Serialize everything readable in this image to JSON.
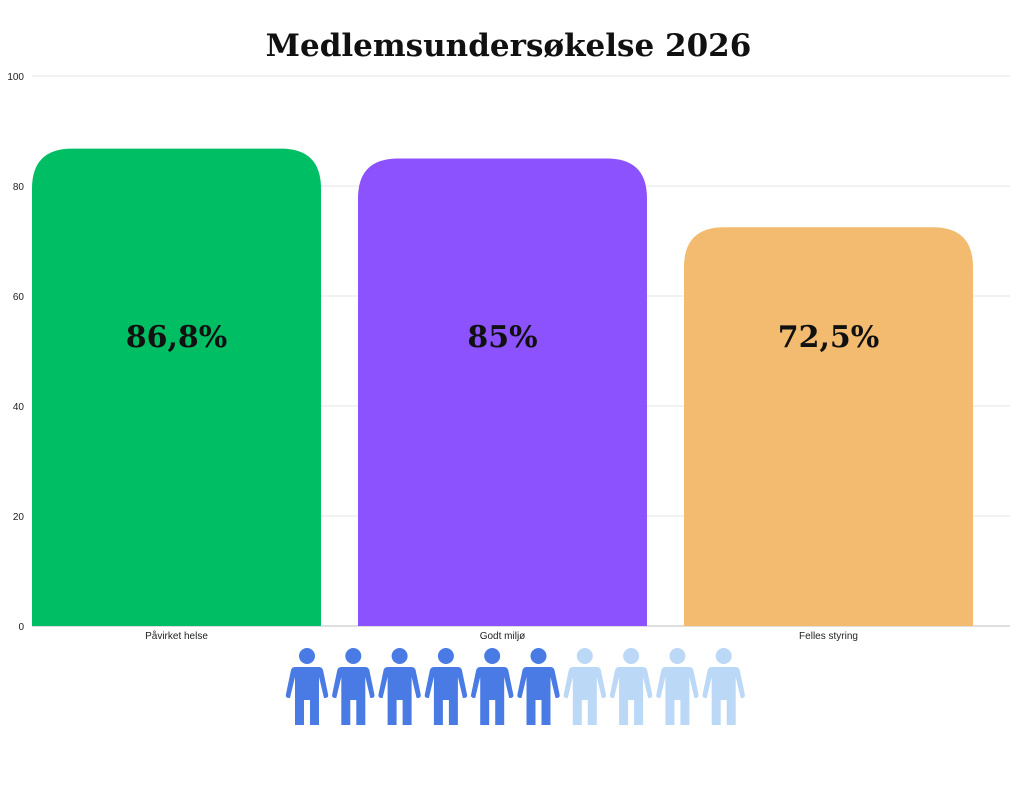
{
  "chart_data": {
    "type": "bar",
    "title": "Medlemsundersøkelse 2026",
    "xlabel": "",
    "ylabel": "",
    "categories": [
      "Påvirket helse",
      "Godt miljø",
      "Felles styring"
    ],
    "values": [
      86.8,
      85,
      72.5
    ],
    "value_labels": [
      "86,8%",
      "85%",
      "72,5%"
    ],
    "colors": [
      "#00be63",
      "#8b52fe",
      "#f2bb70"
    ],
    "ylim": [
      0,
      100
    ],
    "yticks": [
      0,
      20,
      40,
      60,
      80,
      100
    ],
    "grid": true,
    "legend": "none"
  },
  "pictogram": {
    "total": 10,
    "filled": 6,
    "filled_color": "#4a7be4",
    "empty_color": "#bcd8f7",
    "icon": "person-icon"
  }
}
